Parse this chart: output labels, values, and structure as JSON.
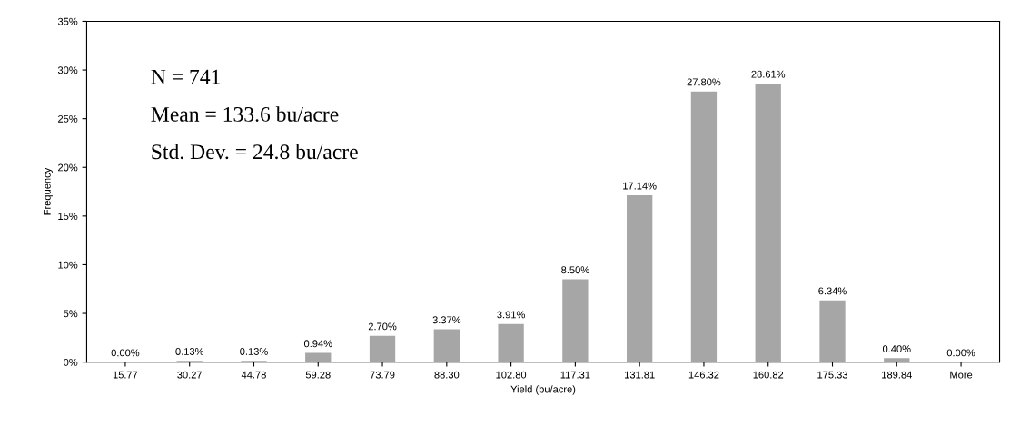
{
  "chart_data": {
    "type": "bar",
    "xlabel": "Yield (bu/acre)",
    "ylabel": "Frequency",
    "categories": [
      "15.77",
      "30.27",
      "44.78",
      "59.28",
      "73.79",
      "88.30",
      "102.80",
      "117.31",
      "131.81",
      "146.32",
      "160.82",
      "175.33",
      "189.84",
      "More"
    ],
    "values": [
      0.0,
      0.13,
      0.13,
      0.94,
      2.7,
      3.37,
      3.91,
      8.5,
      17.14,
      27.8,
      28.61,
      6.34,
      0.4,
      0.0
    ],
    "value_labels": [
      "0.00%",
      "0.13%",
      "0.13%",
      "0.94%",
      "2.70%",
      "3.37%",
      "3.91%",
      "8.50%",
      "17.14%",
      "27.80%",
      "28.61%",
      "6.34%",
      "0.40%",
      "0.00%"
    ],
    "color": "#a6a6a6",
    "ylim": [
      0,
      35
    ],
    "yticks": [
      {
        "value": 0,
        "label": "0%"
      },
      {
        "value": 5,
        "label": "5%"
      },
      {
        "value": 10,
        "label": "10%"
      },
      {
        "value": 15,
        "label": "15%"
      },
      {
        "value": 20,
        "label": "20%"
      },
      {
        "value": 25,
        "label": "25%"
      },
      {
        "value": 30,
        "label": "30%"
      },
      {
        "value": 35,
        "label": "35%"
      }
    ],
    "annotations": [
      "N = 741",
      "Mean = 133.6 bu/acre",
      "Std. Dev. = 24.8 bu/acre"
    ],
    "grid": false
  }
}
